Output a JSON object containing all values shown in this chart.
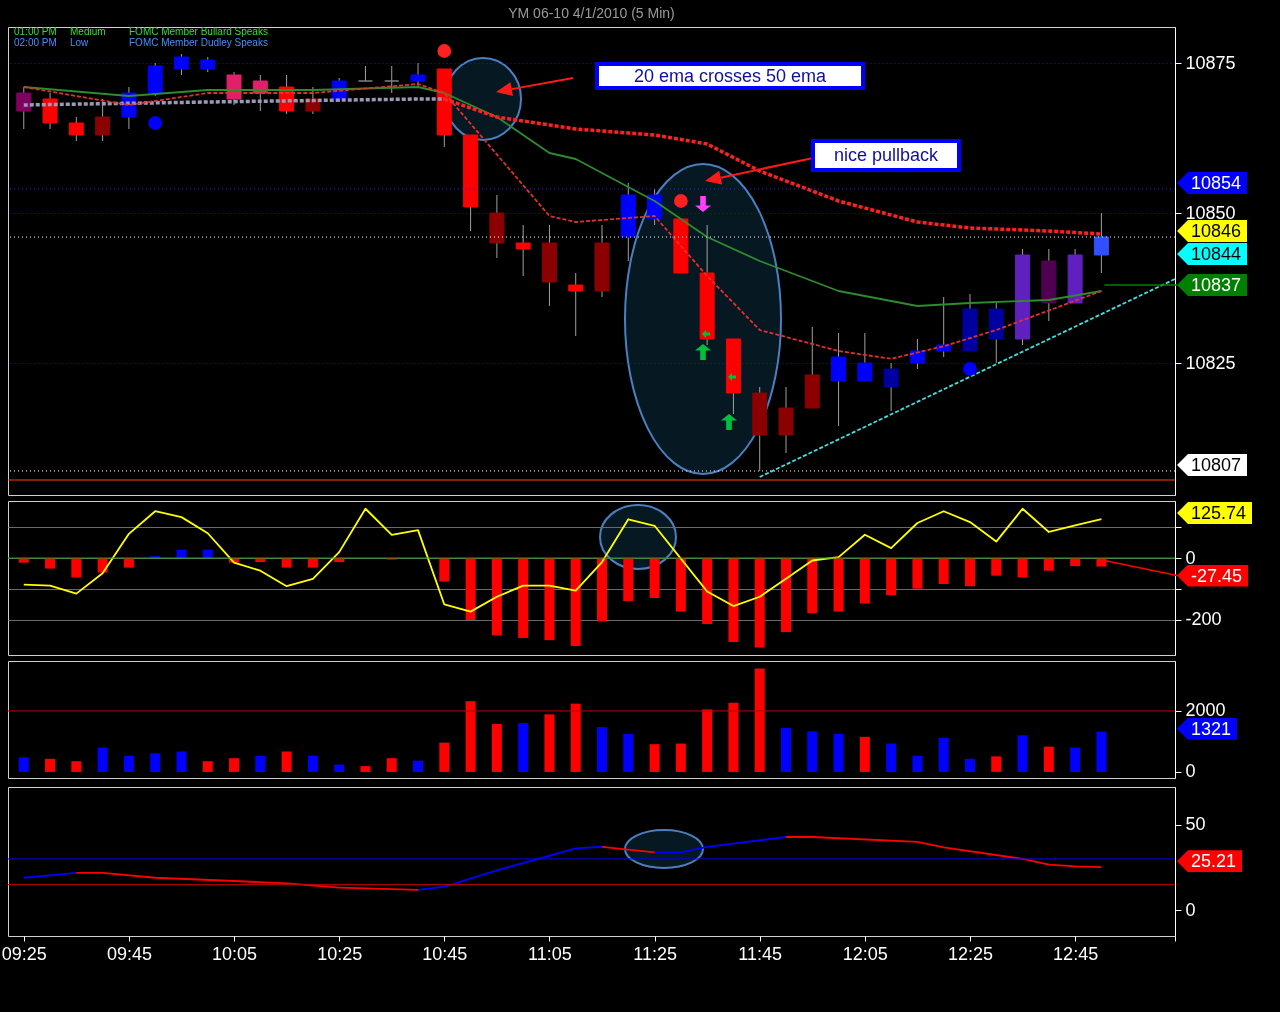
{
  "chart_data": [
    {
      "type": "candlestick",
      "title": "YM 06-10  4/1/2010 (5 Min)",
      "x": [
        "2010-04-01T09:25",
        "2010-04-01T09:30",
        "2010-04-01T09:35",
        "2010-04-01T09:40",
        "2010-04-01T09:45",
        "2010-04-01T09:50",
        "2010-04-01T09:55",
        "2010-04-01T10:00",
        "2010-04-01T10:05",
        "2010-04-01T10:10",
        "2010-04-01T10:15",
        "2010-04-01T10:20",
        "2010-04-01T10:25",
        "2010-04-01T10:30",
        "2010-04-01T10:35",
        "2010-04-01T10:40",
        "2010-04-01T10:45",
        "2010-04-01T10:50",
        "2010-04-01T10:55",
        "2010-04-01T11:00",
        "2010-04-01T11:05",
        "2010-04-01T11:10",
        "2010-04-01T11:15",
        "2010-04-01T11:20",
        "2010-04-01T11:25",
        "2010-04-01T11:30",
        "2010-04-01T11:35",
        "2010-04-01T11:40",
        "2010-04-01T11:45",
        "2010-04-01T11:50",
        "2010-04-01T11:55",
        "2010-04-01T12:00",
        "2010-04-01T12:05",
        "2010-04-01T12:10",
        "2010-04-01T12:15",
        "2010-04-01T12:20",
        "2010-04-01T12:25",
        "2010-04-01T12:30",
        "2010-04-01T12:35",
        "2010-04-01T12:40",
        "2010-04-01T12:45",
        "2010-04-01T12:50"
      ],
      "ohlc": [
        [
          10870,
          10871,
          10864,
          10867
        ],
        [
          10869,
          10870,
          10864,
          10865
        ],
        [
          10865,
          10866,
          10862,
          10863
        ],
        [
          10866,
          10869,
          10862,
          10863
        ],
        [
          10866,
          10871,
          10864,
          10870
        ],
        [
          10870,
          10875,
          10869.5,
          10874.5
        ],
        [
          10874,
          10876.5,
          10873,
          10876
        ],
        [
          10874,
          10876,
          10873.5,
          10875.5
        ],
        [
          10873,
          10873.5,
          10868,
          10869
        ],
        [
          10872,
          10873,
          10867,
          10870
        ],
        [
          10871,
          10873,
          10866.5,
          10867
        ],
        [
          10869,
          10871,
          10866.5,
          10867
        ],
        [
          10869,
          10872.5,
          10868.5,
          10872
        ],
        [
          10872,
          10874.5,
          10872,
          10872
        ],
        [
          10872,
          10874.5,
          10870,
          10872
        ],
        [
          10872,
          10875,
          10871,
          10873
        ],
        [
          10874,
          10874,
          10861,
          10863
        ],
        [
          10863,
          10863,
          10847,
          10851
        ],
        [
          10850,
          10853,
          10842.5,
          10845
        ],
        [
          10845,
          10848,
          10839.5,
          10844
        ],
        [
          10845,
          10848,
          10834.5,
          10838.5
        ],
        [
          10838,
          10840,
          10829.5,
          10837
        ],
        [
          10845,
          10848,
          10836,
          10837
        ],
        [
          10846,
          10855,
          10842,
          10853
        ],
        [
          10849,
          10854,
          10848,
          10853
        ],
        [
          10849,
          10849,
          10840,
          10840
        ],
        [
          10840,
          10848,
          10828,
          10829
        ],
        [
          10829,
          10829,
          10816.5,
          10820
        ],
        [
          10820,
          10821,
          10807,
          10813
        ],
        [
          10817.5,
          10821,
          10810,
          10813
        ],
        [
          10823,
          10831,
          10817.5,
          10817.5
        ],
        [
          10822,
          10830,
          10814.5,
          10826
        ],
        [
          10822,
          10830,
          10822,
          10825
        ],
        [
          10821,
          10825,
          10817,
          10824
        ],
        [
          10825,
          10829,
          10824,
          10827
        ],
        [
          10827,
          10836,
          10826,
          10828
        ],
        [
          10827,
          10836.5,
          10827,
          10834
        ],
        [
          10829,
          10835,
          10825,
          10834
        ],
        [
          10829,
          10844,
          10828,
          10843
        ],
        [
          10835,
          10844,
          10832,
          10842
        ],
        [
          10835,
          10844,
          10835,
          10843
        ],
        [
          10843,
          10850,
          10840,
          10846
        ]
      ],
      "colors": [
        "#800060",
        "#ff0000",
        "#ff0000",
        "#8b0000",
        "#0000ff",
        "#0000ff",
        "#0000ff",
        "#0000ff",
        "#e0206a",
        "#e0206a",
        "#ff0000",
        "#8b0000",
        "#0000ff",
        "#808080",
        "#808080",
        "#0000ff",
        "#ff0000",
        "#ff0000",
        "#8b0000",
        "#ff0000",
        "#8b0000",
        "#ff0000",
        "#8b0000",
        "#0000ff",
        "#0000ff",
        "#ff0000",
        "#ff0000",
        "#ff0000",
        "#8b0000",
        "#8b0000",
        "#8b0000",
        "#0000ff",
        "#0000ff",
        "#0000a0",
        "#0000ff",
        "#0000ff",
        "#0000a0",
        "#0000a0",
        "#6020c0",
        "#500050",
        "#6020c0",
        "#3050ff"
      ],
      "xlim": [
        "2010-04-01T09:22",
        "2010-04-01T13:04"
      ],
      "ylim": [
        10803,
        10881
      ],
      "yticks": [
        10825,
        10850,
        10875
      ],
      "grid": "y",
      "tick_labels": "y",
      "series": [
        {
          "type": "line",
          "color": "#2e8b2e",
          "line_style": "solid",
          "x": [
            "2010-04-01T09:25",
            "2010-04-01T09:45",
            "2010-04-01T10:00",
            "2010-04-01T10:20",
            "2010-04-01T10:40",
            "2010-04-01T10:45",
            "2010-04-01T10:55",
            "2010-04-01T11:05",
            "2010-04-01T11:10",
            "2010-04-01T11:25",
            "2010-04-01T11:35",
            "2010-04-01T11:45",
            "2010-04-01T12:00",
            "2010-04-01T12:15",
            "2010-04-01T12:25",
            "2010-04-01T12:40",
            "2010-04-01T12:50"
          ],
          "values": [
            10871,
            10869.5,
            10870.5,
            10870.5,
            10871,
            10870,
            10866,
            10860,
            10859,
            10852,
            10846,
            10842,
            10837,
            10834.5,
            10835,
            10835.5,
            10837
          ]
        },
        {
          "type": "line",
          "color": "#9a9ab8",
          "line_style": "dashed",
          "x": [
            "2010-04-01T09:25",
            "2010-04-01T10:00",
            "2010-04-01T10:40",
            "2010-04-01T10:45"
          ],
          "values": [
            10868,
            10868.5,
            10869,
            10869
          ]
        },
        {
          "type": "line",
          "color": "#ff2020",
          "line_style": "dashed",
          "x": [
            "2010-04-01T10:45",
            "2010-04-01T10:55",
            "2010-04-01T11:10",
            "2010-04-01T11:25",
            "2010-04-01T11:35",
            "2010-04-01T11:45",
            "2010-04-01T12:00",
            "2010-04-01T12:15",
            "2010-04-01T12:25",
            "2010-04-01T12:40",
            "2010-04-01T12:50"
          ],
          "values": [
            10869,
            10866,
            10864,
            10863,
            10861.5,
            10857,
            10852,
            10848.5,
            10847.5,
            10847,
            10846.5
          ]
        },
        {
          "type": "line",
          "color": "#e03030",
          "line_style": "dashed",
          "x": [
            "2010-04-01T09:25",
            "2010-04-01T09:45",
            "2010-04-01T10:00",
            "2010-04-01T10:20",
            "2010-04-01T10:40",
            "2010-04-01T10:45",
            "2010-04-01T11:05",
            "2010-04-01T11:10",
            "2010-04-01T11:25",
            "2010-04-01T11:35",
            "2010-04-01T11:45",
            "2010-04-01T12:00",
            "2010-04-01T12:10",
            "2010-04-01T12:20",
            "2010-04-01T12:30",
            "2010-04-01T12:50"
          ],
          "values": [
            10871,
            10868,
            10870,
            10870,
            10871.5,
            10870,
            10849.5,
            10848.5,
            10849.5,
            10839.5,
            10830.5,
            10827,
            10825.7,
            10827.8,
            10830.5,
            10837
          ]
        },
        {
          "type": "line",
          "color": "#40e0e0",
          "line_style": "dashed",
          "x": [
            "2010-04-01T11:45",
            "2010-04-01T13:04"
          ],
          "values": [
            10806,
            10839
          ]
        },
        {
          "type": "scatter",
          "color": "#ff2020",
          "marker": "circle",
          "x": [
            "2010-04-01T10:45",
            "2010-04-01T11:30"
          ],
          "values": [
            10877,
            10852
          ]
        },
        {
          "type": "scatter",
          "color": "#0000ff",
          "marker": "circle",
          "x": [
            "2010-04-01T09:50",
            "2010-04-01T12:25"
          ],
          "values": [
            10865,
            10824
          ]
        }
      ],
      "ref_lines": [
        {
          "axis": "y",
          "value": 10854,
          "label": "10854",
          "color": "#2020ff",
          "line_style": "dotted"
        },
        {
          "axis": "y",
          "value": 10846,
          "label": "10846",
          "color": "#ffffff",
          "line_style": "dotted"
        },
        {
          "axis": "y",
          "value": 10807,
          "label": "10807",
          "color": "#ffffff",
          "line_style": "dotted"
        },
        {
          "axis": "y",
          "value": 10805.5,
          "color": "#ff4500",
          "line_style": "solid"
        }
      ],
      "annotations": [
        "01:00 PM",
        "Medium",
        "FOMC Member Bullard Speaks",
        "02:00 PM",
        "Low",
        "FOMC Member Dudley Speaks",
        "20 ema crosses 50 ema",
        "nice pullback",
        "10844",
        {
          "text": "10837",
          "x": "2010-04-01T12:50",
          "y": 10837
        }
      ]
    },
    {
      "type": "bar",
      "x": [
        "2010-04-01T09:25",
        "2010-04-01T09:30",
        "2010-04-01T09:35",
        "2010-04-01T09:40",
        "2010-04-01T09:45",
        "2010-04-01T09:50",
        "2010-04-01T09:55",
        "2010-04-01T10:00",
        "2010-04-01T10:05",
        "2010-04-01T10:10",
        "2010-04-01T10:15",
        "2010-04-01T10:20",
        "2010-04-01T10:25",
        "2010-04-01T10:30",
        "2010-04-01T10:35",
        "2010-04-01T10:40",
        "2010-04-01T10:45",
        "2010-04-01T10:50",
        "2010-04-01T10:55",
        "2010-04-01T11:00",
        "2010-04-01T11:05",
        "2010-04-01T11:10",
        "2010-04-01T11:15",
        "2010-04-01T11:20",
        "2010-04-01T11:25",
        "2010-04-01T11:30",
        "2010-04-01T11:35",
        "2010-04-01T11:40",
        "2010-04-01T11:45",
        "2010-04-01T11:50",
        "2010-04-01T11:55",
        "2010-04-01T12:00",
        "2010-04-01T12:05",
        "2010-04-01T12:10",
        "2010-04-01T12:15",
        "2010-04-01T12:20",
        "2010-04-01T12:25",
        "2010-04-01T12:30",
        "2010-04-01T12:35",
        "2010-04-01T12:40",
        "2010-04-01T12:45",
        "2010-04-01T12:50"
      ],
      "xlim": [
        "2010-04-01T09:22",
        "2010-04-01T13:04"
      ],
      "ylim": [
        -313,
        184
      ],
      "yticks": [
        {
          "value": 100,
          "label": null
        },
        0,
        {
          "value": -100,
          "label": null
        },
        -200
      ],
      "grid": "y",
      "tick_labels": "y",
      "series": [
        {
          "type": "bar",
          "values": [
            -15,
            -34,
            -63,
            -47,
            -31,
            6,
            27,
            27,
            -15,
            -13,
            -31,
            -31,
            -13,
            0,
            -5,
            0,
            -76,
            -200,
            -250,
            -258,
            -265,
            -284,
            -205,
            -139,
            -129,
            -173,
            -213,
            -271,
            -289,
            -239,
            -178,
            -173,
            -147,
            -120,
            -99,
            -84,
            -91,
            -57,
            -63,
            -41,
            -26,
            -27.45
          ],
          "colors": [
            "#ff0000",
            "#ff0000",
            "#ff0000",
            "#ff0000",
            "#ff0000",
            "#0000ff",
            "#0000ff",
            "#0000ff",
            "#ff0000",
            "#ff0000",
            "#ff0000",
            "#ff0000",
            "#ff0000",
            "#ff0000",
            "#ff0000",
            "#ff0000",
            "#ff0000",
            "#ff0000",
            "#ff0000",
            "#ff0000",
            "#ff0000",
            "#ff0000",
            "#ff0000",
            "#ff0000",
            "#ff0000",
            "#ff0000",
            "#ff0000",
            "#ff0000",
            "#ff0000",
            "#ff0000",
            "#ff0000",
            "#ff0000",
            "#ff0000",
            "#ff0000",
            "#ff0000",
            "#ff0000",
            "#ff0000",
            "#ff0000",
            "#ff0000",
            "#ff0000",
            "#ff0000",
            "#ff0000"
          ]
        },
        {
          "type": "line",
          "color": "#ffff00",
          "values": [
            -86,
            -89,
            -115,
            -49,
            78,
            151,
            132,
            80,
            -15,
            -41,
            -91,
            -67,
            19,
            159,
            75,
            90,
            -150,
            -173,
            -125,
            -89,
            -89,
            -105,
            -13,
            125,
            104,
            -2,
            -108,
            -155,
            -125,
            -67,
            -8,
            3,
            75,
            32,
            113,
            151,
            116,
            53,
            159,
            84,
            105,
            125.74
          ]
        }
      ],
      "ref_lines": [
        {
          "axis": "y",
          "value": 0,
          "color": "#20a020",
          "line_style": "solid"
        }
      ],
      "annotations": [
        "125.74",
        {
          "text": "-27.45",
          "x": "2010-04-01T12:50",
          "y": -27.45
        }
      ]
    },
    {
      "type": "bar",
      "x": [
        "2010-04-01T09:25",
        "2010-04-01T09:30",
        "2010-04-01T09:35",
        "2010-04-01T09:40",
        "2010-04-01T09:45",
        "2010-04-01T09:50",
        "2010-04-01T09:55",
        "2010-04-01T10:00",
        "2010-04-01T10:05",
        "2010-04-01T10:10",
        "2010-04-01T10:15",
        "2010-04-01T10:20",
        "2010-04-01T10:25",
        "2010-04-01T10:30",
        "2010-04-01T10:35",
        "2010-04-01T10:40",
        "2010-04-01T10:45",
        "2010-04-01T10:50",
        "2010-04-01T10:55",
        "2010-04-01T11:00",
        "2010-04-01T11:05",
        "2010-04-01T11:10",
        "2010-04-01T11:15",
        "2010-04-01T11:20",
        "2010-04-01T11:25",
        "2010-04-01T11:30",
        "2010-04-01T11:35",
        "2010-04-01T11:40",
        "2010-04-01T11:45",
        "2010-04-01T11:50",
        "2010-04-01T11:55",
        "2010-04-01T12:00",
        "2010-04-01T12:05",
        "2010-04-01T12:10",
        "2010-04-01T12:15",
        "2010-04-01T12:20",
        "2010-04-01T12:25",
        "2010-04-01T12:30",
        "2010-04-01T12:35",
        "2010-04-01T12:40",
        "2010-04-01T12:45",
        "2010-04-01T12:50"
      ],
      "xlim": [
        "2010-04-01T09:22",
        "2010-04-01T13:04"
      ],
      "values": [
        480,
        430,
        350,
        800,
        530,
        610,
        670,
        350,
        450,
        530,
        670,
        530,
        240,
        190,
        450,
        370,
        960,
        2320,
        1570,
        1600,
        1890,
        2240,
        1470,
        1250,
        910,
        930,
        2050,
        2270,
        3390,
        1440,
        1330,
        1250,
        1150,
        930,
        530,
        1120,
        430,
        510,
        1200,
        830,
        800,
        1321
      ],
      "colors": [
        "#0000ff",
        "#ff0000",
        "#ff0000",
        "#0000ff",
        "#0000ff",
        "#0000ff",
        "#0000ff",
        "#ff0000",
        "#ff0000",
        "#0000ff",
        "#ff0000",
        "#0000ff",
        "#0000ff",
        "#ff0000",
        "#ff0000",
        "#0000ff",
        "#ff0000",
        "#ff0000",
        "#ff0000",
        "#0000ff",
        "#ff0000",
        "#ff0000",
        "#0000ff",
        "#0000ff",
        "#ff0000",
        "#ff0000",
        "#ff0000",
        "#ff0000",
        "#ff0000",
        "#0000ff",
        "#0000ff",
        "#0000ff",
        "#ff0000",
        "#0000ff",
        "#0000ff",
        "#0000ff",
        "#0000ff",
        "#ff0000",
        "#0000ff",
        "#ff0000",
        "#0000ff",
        "#0000ff"
      ],
      "ylim": [
        -200,
        3640
      ],
      "yticks": [
        0,
        2000
      ],
      "tick_labels": "y",
      "ref_lines": [
        {
          "axis": "y",
          "value": 2000,
          "color": "#c00000",
          "line_style": "solid"
        }
      ],
      "annotations": [
        "1321"
      ]
    },
    {
      "type": "line",
      "xlim": [
        "2010-04-01T09:22",
        "2010-04-01T13:04"
      ],
      "xticks": [
        {
          "value": "2010-04-01T09:25",
          "label": "09:25"
        },
        {
          "value": "2010-04-01T09:45",
          "label": "09:45"
        },
        {
          "value": "2010-04-01T10:05",
          "label": "10:05"
        },
        {
          "value": "2010-04-01T10:25",
          "label": "10:25"
        },
        {
          "value": "2010-04-01T10:45",
          "label": "10:45"
        },
        {
          "value": "2010-04-01T11:05",
          "label": "11:05"
        },
        {
          "value": "2010-04-01T11:25",
          "label": "11:25"
        },
        {
          "value": "2010-04-01T11:45",
          "label": "11:45"
        },
        {
          "value": "2010-04-01T12:05",
          "label": "12:05"
        },
        {
          "value": "2010-04-01T12:25",
          "label": "12:25"
        },
        {
          "value": "2010-04-01T12:45",
          "label": "12:45"
        },
        {
          "value": "2010-04-01T13:04",
          "label": null
        }
      ],
      "ylim": [
        -15,
        72
      ],
      "yticks": [
        0,
        50
      ],
      "series": [
        {
          "type": "line",
          "color": "#0000ff",
          "x": [
            "2010-04-01T09:25",
            "2010-04-01T09:35",
            "2010-04-01T10:10",
            "2010-04-01T10:40",
            "2010-04-01T10:45",
            "2010-04-01T10:55",
            "2010-04-01T11:10",
            "2010-04-01T11:15",
            "2010-04-01T11:20",
            "2010-04-01T11:25",
            "2010-04-01T11:30",
            "2010-04-01T11:35",
            "2010-04-01T11:50"
          ],
          "values": [
            19,
            21.9,
            null,
            11.9,
            13.8,
            23.3,
            36.2,
            37.1,
            null,
            33.8,
            33.8,
            37.1,
            42.8
          ]
        },
        {
          "type": "line",
          "color": "#ff0000",
          "x": [
            "2010-04-01T09:35",
            "2010-04-01T09:40",
            "2010-04-01T09:50",
            "2010-04-01T10:05",
            "2010-04-01T10:15",
            "2010-04-01T10:25",
            "2010-04-01T10:40",
            "2010-04-01T10:55",
            "2010-04-01T11:15",
            "2010-04-01T11:25",
            "2010-04-01T11:40",
            "2010-04-01T11:50",
            "2010-04-01T11:55",
            "2010-04-01T12:15",
            "2010-04-01T12:20",
            "2010-04-01T12:35",
            "2010-04-01T12:40",
            "2010-04-01T12:45",
            "2010-04-01T12:50"
          ],
          "values": [
            21.9,
            21.9,
            19,
            17.1,
            15.7,
            13.3,
            11.9,
            null,
            37.1,
            33.8,
            null,
            42.8,
            42.8,
            40,
            36.7,
            30,
            26.7,
            25.7,
            25.21
          ]
        }
      ],
      "ref_lines": [
        {
          "axis": "y",
          "value": 30,
          "color": "#0000ff",
          "line_style": "solid"
        },
        {
          "axis": "y",
          "value": 15,
          "color": "#c00000",
          "line_style": "solid"
        }
      ],
      "annotations": [
        "25.21"
      ]
    }
  ]
}
